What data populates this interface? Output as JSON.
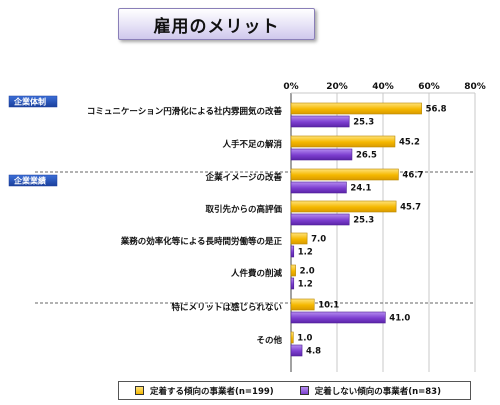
{
  "title": "雇用のメリット",
  "chart_data": {
    "type": "bar",
    "orientation": "horizontal",
    "title": "雇用のメリット",
    "xlim": [
      0,
      80
    ],
    "ticks": [
      "0%",
      "20%",
      "40%",
      "60%",
      "80%"
    ],
    "grid": true,
    "legend_position": "bottom",
    "sections": [
      {
        "label": "企業体制",
        "start_index": 0
      },
      {
        "label": "企業業績",
        "start_index": 2
      }
    ],
    "categories": [
      "コミュニケーション円滑化による社内雰囲気の改善",
      "人手不足の解消",
      "企業イメージの改善",
      "取引先からの高評価",
      "業務の効率化等による長時間労働等の是正",
      "人件費の削減",
      "特にメリットは感じられない",
      "その他"
    ],
    "series": [
      {
        "name": "定着する傾向の事業者(n=199)",
        "color": "#f5b800",
        "values": [
          56.8,
          45.2,
          46.7,
          45.7,
          7.0,
          2.0,
          10.1,
          1.0
        ],
        "labels": [
          "56.8",
          "45.2",
          "46.7",
          "45.7",
          "7.0",
          "2.0",
          "10.1",
          "1.0"
        ]
      },
      {
        "name": "定着しない傾向の事業者(n=83)",
        "color": "#7d3fd0",
        "values": [
          25.3,
          26.5,
          24.1,
          25.3,
          1.2,
          1.2,
          41.0,
          4.8
        ],
        "labels": [
          "25.3",
          "26.5",
          "24.1",
          "25.3",
          "1.2",
          "1.2",
          "41.0",
          "4.8"
        ]
      }
    ]
  }
}
